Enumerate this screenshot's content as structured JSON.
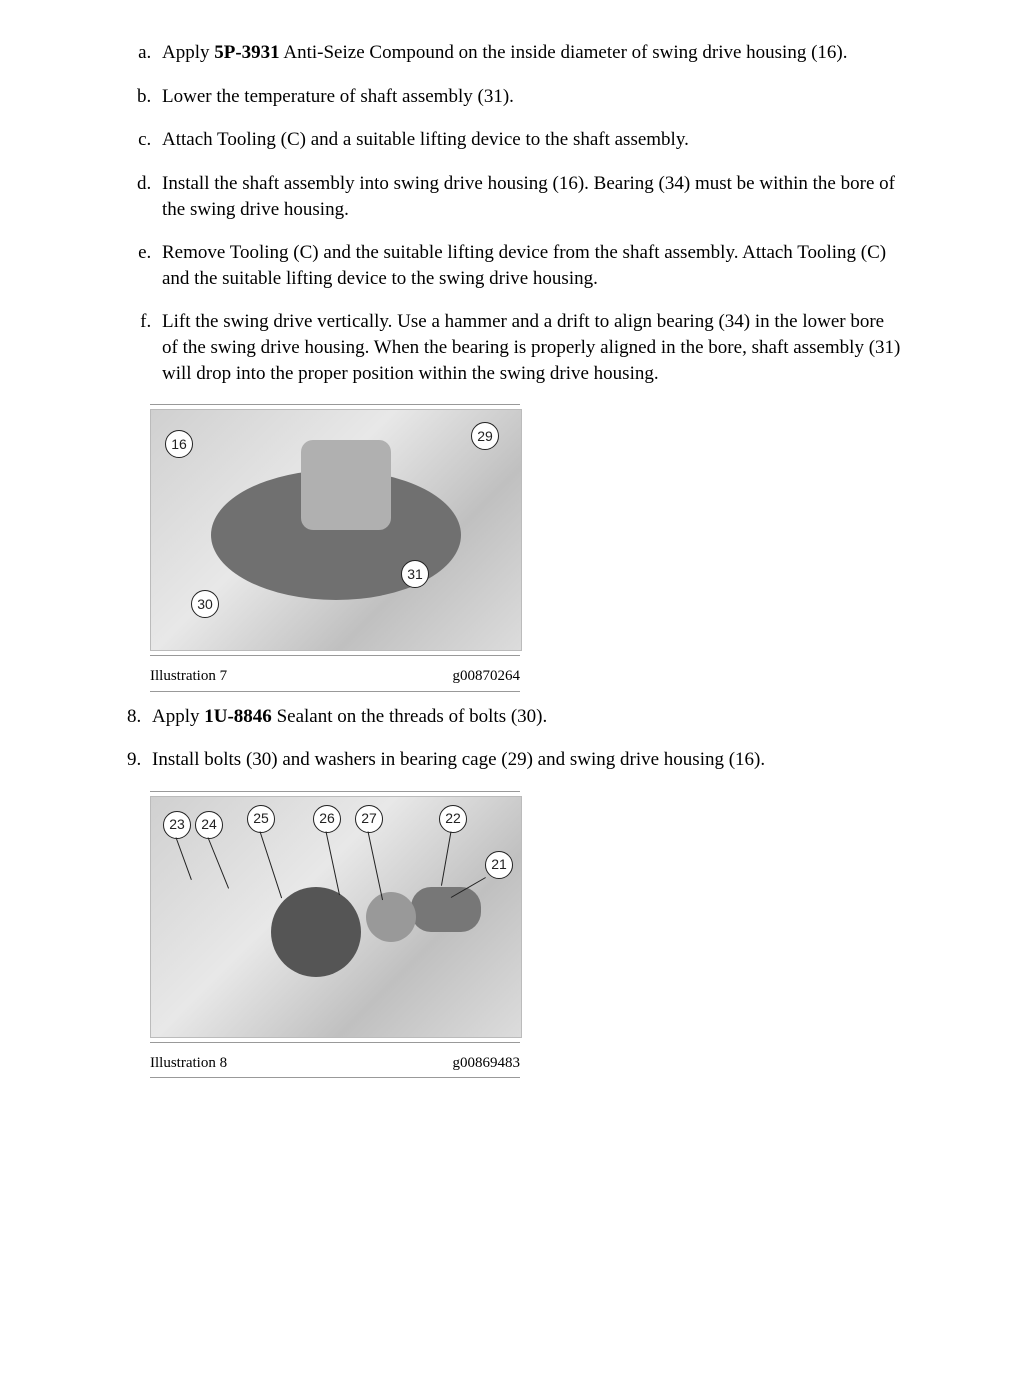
{
  "sublist": {
    "a": "Apply <b>5P-3931</b> Anti-Seize Compound on the inside diameter of swing drive housing (16).",
    "b": "Lower the temperature of shaft assembly (31).",
    "c": "Attach Tooling (C) and a suitable lifting device to the shaft assembly.",
    "d": "Install the shaft assembly into swing drive housing (16). Bearing (34) must be within the bore of the swing drive housing.",
    "e": "Remove Tooling (C) and the suitable lifting device from the shaft assembly. Attach Tooling (C) and the suitable lifting device to the swing drive housing.",
    "f": "Lift the swing drive vertically. Use a hammer and a drift to align bearing (34) in the lower bore of the swing drive housing. When the bearing is properly aligned in the bore, shaft assembly (31) will drop into the proper position within the swing drive housing."
  },
  "fig7": {
    "label": "Illustration 7",
    "code": "g00870264",
    "callouts": {
      "c16": "16",
      "c29": "29",
      "c30": "30",
      "c31": "31"
    }
  },
  "mainlist": {
    "i8": "Apply <b>1U-8846</b> Sealant on the threads of bolts (30).",
    "i9": "Install bolts (30) and washers in bearing cage (29) and swing drive housing (16)."
  },
  "fig8": {
    "label": "Illustration 8",
    "code": "g00869483",
    "callouts": {
      "c21": "21",
      "c22": "22",
      "c23": "23",
      "c24": "24",
      "c25": "25",
      "c26": "26",
      "c27": "27"
    }
  }
}
